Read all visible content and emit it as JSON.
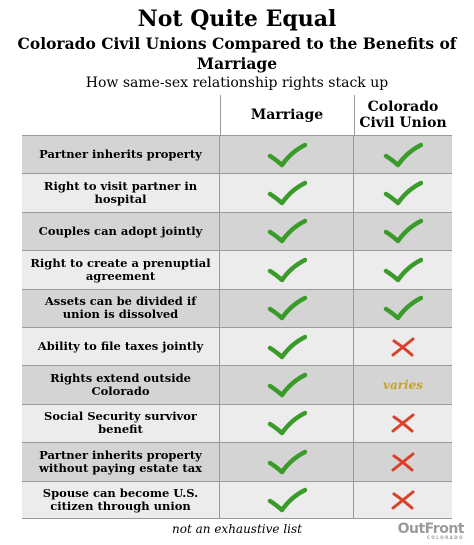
{
  "title": "Not Quite Equal",
  "subtitle": "Colorado Civil Unions Compared to the Benefits of Marriage",
  "caption": "How same-sex relationship rights stack up",
  "columns": [
    "Marriage",
    "Colorado Civil Union"
  ],
  "rows": [
    {
      "label": "Partner inherits property",
      "marriage": "check",
      "civil_union": "check"
    },
    {
      "label": "Right to visit partner in hospital",
      "marriage": "check",
      "civil_union": "check"
    },
    {
      "label": "Couples can adopt jointly",
      "marriage": "check",
      "civil_union": "check"
    },
    {
      "label": "Right to create a prenuptial agreement",
      "marriage": "check",
      "civil_union": "check"
    },
    {
      "label": "Assets can be divided if union is dissolved",
      "marriage": "check",
      "civil_union": "check"
    },
    {
      "label": "Ability to file taxes jointly",
      "marriage": "check",
      "civil_union": "x"
    },
    {
      "label": "Rights extend outside Colorado",
      "marriage": "check",
      "civil_union": "varies"
    },
    {
      "label": "Social Security survivor benefit",
      "marriage": "check",
      "civil_union": "x"
    },
    {
      "label": "Partner inherits property without paying estate tax",
      "marriage": "check",
      "civil_union": "x"
    },
    {
      "label": "Spouse can become U.S. citizen through union",
      "marriage": "check",
      "civil_union": "x"
    }
  ],
  "varies_text": "varies",
  "note": "not an exhaustive list",
  "logo": {
    "text": "OutFront",
    "tagline": "COLORADO"
  },
  "colors": {
    "check": "#3a9a2a",
    "x": "#d9412b",
    "varies": "#c9a227",
    "shade": "#d4d4d4",
    "light": "#ececec"
  }
}
